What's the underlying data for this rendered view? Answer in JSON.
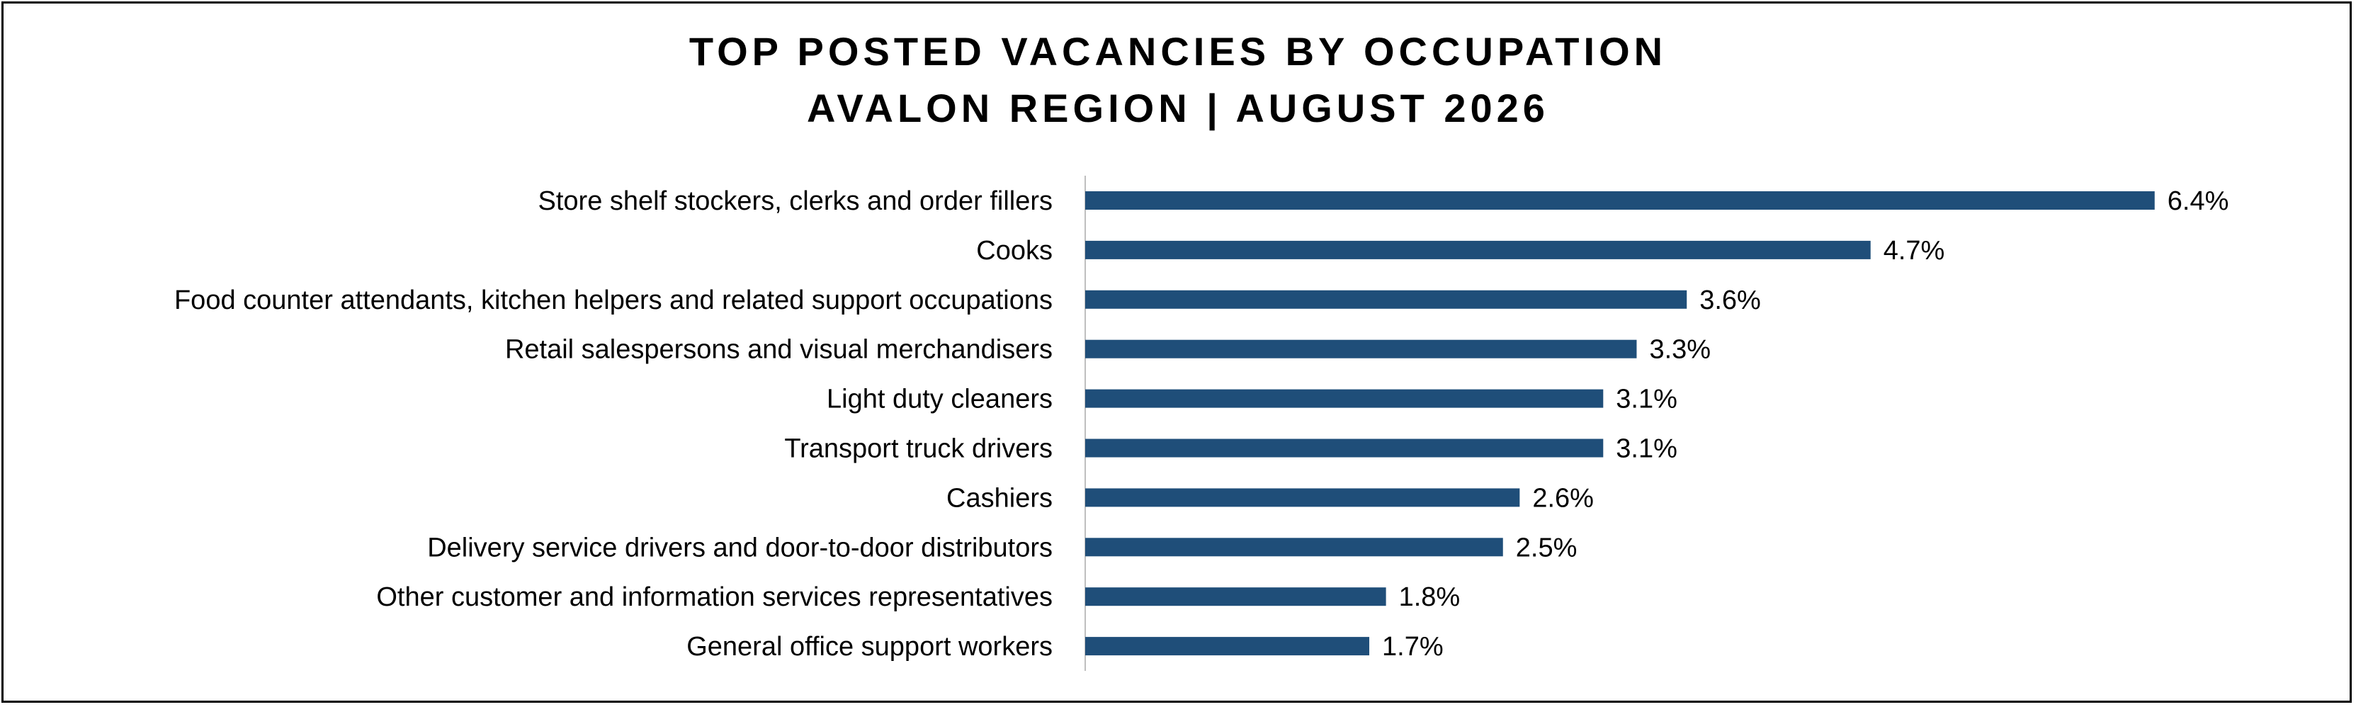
{
  "chart_data": {
    "type": "bar",
    "orientation": "horizontal",
    "title": "TOP POSTED VACANCIES BY OCCUPATION",
    "subtitle": "AVALON REGION | AUGUST 2026",
    "categories": [
      "Store shelf stockers, clerks and order fillers",
      "Cooks",
      "Food counter attendants, kitchen helpers and related support occupations",
      "Retail salespersons and visual merchandisers",
      "Light duty cleaners",
      "Transport truck drivers",
      "Cashiers",
      "Delivery service drivers and door-to-door distributors",
      "Other customer and information services representatives",
      "General office support workers"
    ],
    "values": [
      6.4,
      4.7,
      3.6,
      3.3,
      3.1,
      3.1,
      2.6,
      2.5,
      1.8,
      1.7
    ],
    "value_labels": [
      "6.4%",
      "4.7%",
      "3.6%",
      "3.3%",
      "3.1%",
      "3.1%",
      "2.6%",
      "2.5%",
      "1.8%",
      "1.7%"
    ],
    "unit": "%",
    "xlim": [
      0,
      7
    ],
    "grid": false,
    "legend": "none",
    "bar_color": "#1F4E79"
  }
}
